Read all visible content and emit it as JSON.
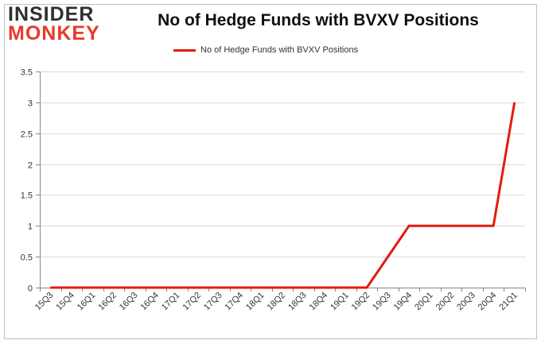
{
  "logo": {
    "line1": "INSIDER",
    "line2": "MONKEY"
  },
  "colors": {
    "series": "#e41a10",
    "grid": "#d9d9d9",
    "frame": "#bfbfbf",
    "logo_red": "#e8392a",
    "logo_dark": "#2f2f2f"
  },
  "chart_data": {
    "type": "line",
    "title": "No of Hedge Funds with BVXV Positions",
    "xlabel": "",
    "ylabel": "",
    "categories": [
      "15Q3",
      "15Q4",
      "16Q1",
      "16Q2",
      "16Q3",
      "16Q4",
      "17Q1",
      "17Q2",
      "17Q3",
      "17Q4",
      "18Q1",
      "18Q2",
      "18Q3",
      "18Q4",
      "19Q1",
      "19Q2",
      "19Q3",
      "19Q4",
      "20Q1",
      "20Q2",
      "20Q3",
      "20Q4",
      "21Q1"
    ],
    "series": [
      {
        "name": "No of Hedge Funds with BVXV Positions",
        "values": [
          0,
          0,
          0,
          0,
          0,
          0,
          0,
          0,
          0,
          0,
          0,
          0,
          0,
          0,
          0,
          0,
          null,
          1,
          1,
          1,
          1,
          1,
          3
        ]
      }
    ],
    "ylim": [
      0,
      3.5
    ],
    "yticks": [
      "0",
      "0.5",
      "1",
      "1.5",
      "2",
      "2.5",
      "3",
      "3.5"
    ],
    "grid": true,
    "legend": "top-center"
  }
}
